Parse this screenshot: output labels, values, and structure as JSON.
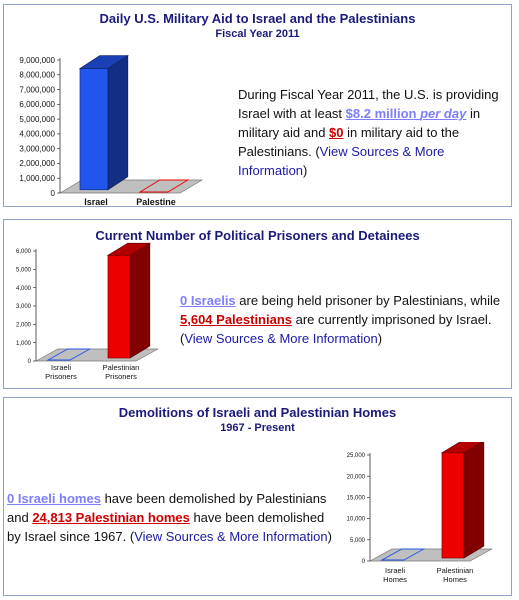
{
  "panel1": {
    "title": "Daily U.S. Military Aid to Israel and the Palestinians",
    "subtitle": "Fiscal Year 2011",
    "text_before": "During Fiscal Year 2011, the U.S. is providing Israel with at least ",
    "highlight1_a": "$8.2 million ",
    "highlight1_b": "per day",
    "text_mid": " in military aid and ",
    "highlight2": "$0",
    "text_after": " in military aid to the Palestinians. (",
    "link": "View Sources & More Information",
    "text_end": ")"
  },
  "panel2": {
    "title": "Current Number of Political Prisoners and Detainees",
    "highlight1": "0 Israelis",
    "text_mid": " are being held prisoner by Palestinians, while ",
    "highlight2": "5,604 Palestinians",
    "text_after": " are currently imprisoned by Israel. (",
    "link": "View Sources & More Information",
    "text_end": ")"
  },
  "panel3": {
    "title": "Demolitions of Israeli and Palestinian Homes",
    "subtitle": "1967 - Present",
    "highlight1": "0 Israeli homes",
    "text_mid": " have been demolished by Palestinians and ",
    "highlight2": "24,813 Palestinian homes",
    "text_after": " have been demolished by Israel since 1967. (",
    "link": "View Sources & More Information",
    "text_end": ")"
  },
  "colors": {
    "israel": "#2255ee",
    "palestine": "#ee0000",
    "title": "#1a1a7a"
  },
  "chart_data": [
    {
      "type": "bar",
      "title": "Daily U.S. Military Aid to Israel and the Palestinians",
      "subtitle": "Fiscal Year 2011",
      "categories": [
        "Israel",
        "Palestine"
      ],
      "values": [
        8200000,
        0
      ],
      "ylim": [
        0,
        9000000
      ],
      "yticks": [
        "0",
        "1,000,000",
        "2,000,000",
        "3,000,000",
        "4,000,000",
        "5,000,000",
        "6,000,000",
        "7,000,000",
        "8,000,000",
        "9,000,000"
      ]
    },
    {
      "type": "bar",
      "title": "Current Number of Political Prisoners and Detainees",
      "categories": [
        "Israeli Prisoners",
        "Palestinian Prisoners"
      ],
      "values": [
        0,
        5604
      ],
      "ylim": [
        0,
        6000
      ],
      "yticks": [
        "0",
        "1,000",
        "2,000",
        "3,000",
        "4,000",
        "5,000",
        "6,000"
      ]
    },
    {
      "type": "bar",
      "title": "Demolitions of Israeli and Palestinian Homes",
      "subtitle": "1967 - Present",
      "categories": [
        "Israeli Homes",
        "Palestinian Homes"
      ],
      "values": [
        0,
        24813
      ],
      "ylim": [
        0,
        25000
      ],
      "yticks": [
        "0",
        "5,000",
        "10,000",
        "15,000",
        "20,000",
        "25,000"
      ]
    }
  ]
}
